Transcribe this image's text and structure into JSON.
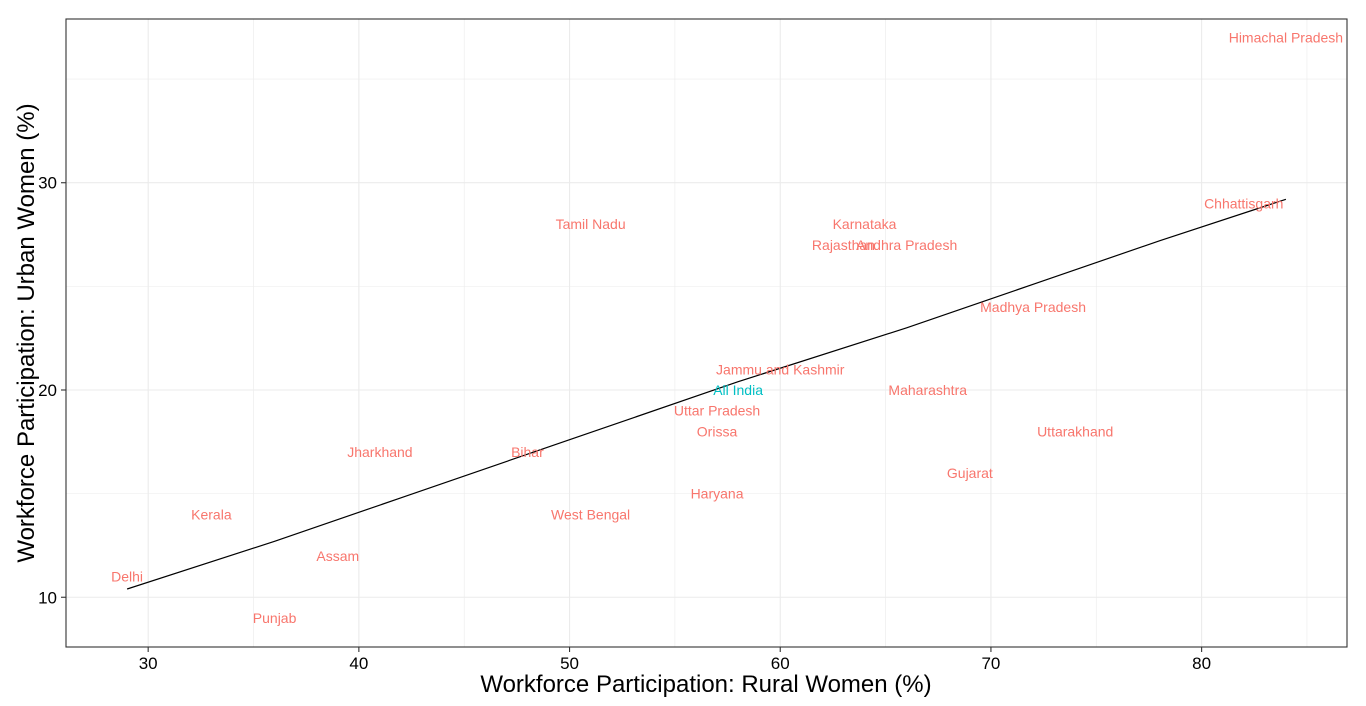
{
  "chart_data": {
    "type": "scatter",
    "title": "",
    "xlabel": "Workforce Participation: Rural Women (%)",
    "ylabel": "Workforce Participation: Urban Women (%)",
    "xlim": [
      26.1,
      86.9
    ],
    "ylim": [
      7.6,
      37.9
    ],
    "x_ticks": [
      30,
      40,
      50,
      60,
      70,
      80
    ],
    "y_ticks": [
      10,
      20,
      30
    ],
    "grid": true,
    "legend": "none",
    "colors": {
      "state": "#F8766D",
      "national": "#00BFC4",
      "trend_line": "#000000",
      "grid": "#EBEBEB",
      "panel_border": "#333333"
    },
    "points": [
      {
        "label": "Delhi",
        "x": 29,
        "y": 11,
        "group": "state"
      },
      {
        "label": "Kerala",
        "x": 33,
        "y": 14,
        "group": "state"
      },
      {
        "label": "Punjab",
        "x": 36,
        "y": 9,
        "group": "state"
      },
      {
        "label": "Assam",
        "x": 39,
        "y": 12,
        "group": "state"
      },
      {
        "label": "Jharkhand",
        "x": 41,
        "y": 17,
        "group": "state"
      },
      {
        "label": "Bihar",
        "x": 48,
        "y": 17,
        "group": "state"
      },
      {
        "label": "Tamil Nadu",
        "x": 51,
        "y": 28,
        "group": "state"
      },
      {
        "label": "West Bengal",
        "x": 51,
        "y": 14,
        "group": "state"
      },
      {
        "label": "Haryana",
        "x": 57,
        "y": 15,
        "group": "state"
      },
      {
        "label": "Orissa",
        "x": 57,
        "y": 18,
        "group": "state"
      },
      {
        "label": "Uttar Pradesh",
        "x": 57,
        "y": 19,
        "group": "state"
      },
      {
        "label": "All India",
        "x": 58,
        "y": 20,
        "group": "national"
      },
      {
        "label": "Jammu and Kashmir",
        "x": 60,
        "y": 21,
        "group": "state"
      },
      {
        "label": "Rajasthan",
        "x": 63,
        "y": 27,
        "group": "state"
      },
      {
        "label": "Karnataka",
        "x": 64,
        "y": 28,
        "group": "state"
      },
      {
        "label": "Andhra Pradesh",
        "x": 66,
        "y": 27,
        "group": "state"
      },
      {
        "label": "Maharashtra",
        "x": 67,
        "y": 20,
        "group": "state"
      },
      {
        "label": "Gujarat",
        "x": 69,
        "y": 16,
        "group": "state"
      },
      {
        "label": "Madhya Pradesh",
        "x": 72,
        "y": 24,
        "group": "state"
      },
      {
        "label": "Uttarakhand",
        "x": 74,
        "y": 18,
        "group": "state"
      },
      {
        "label": "Chhattisgarh",
        "x": 82,
        "y": 29,
        "group": "state"
      },
      {
        "label": "Himachal Pradesh",
        "x": 84,
        "y": 37,
        "group": "state"
      }
    ],
    "trend_line": [
      {
        "x": 29,
        "y": 10.4
      },
      {
        "x": 36,
        "y": 12.7
      },
      {
        "x": 42,
        "y": 14.8
      },
      {
        "x": 50,
        "y": 17.6
      },
      {
        "x": 58,
        "y": 20.4
      },
      {
        "x": 66,
        "y": 23.0
      },
      {
        "x": 72,
        "y": 25.1
      },
      {
        "x": 78,
        "y": 27.2
      },
      {
        "x": 84,
        "y": 29.2
      }
    ]
  }
}
